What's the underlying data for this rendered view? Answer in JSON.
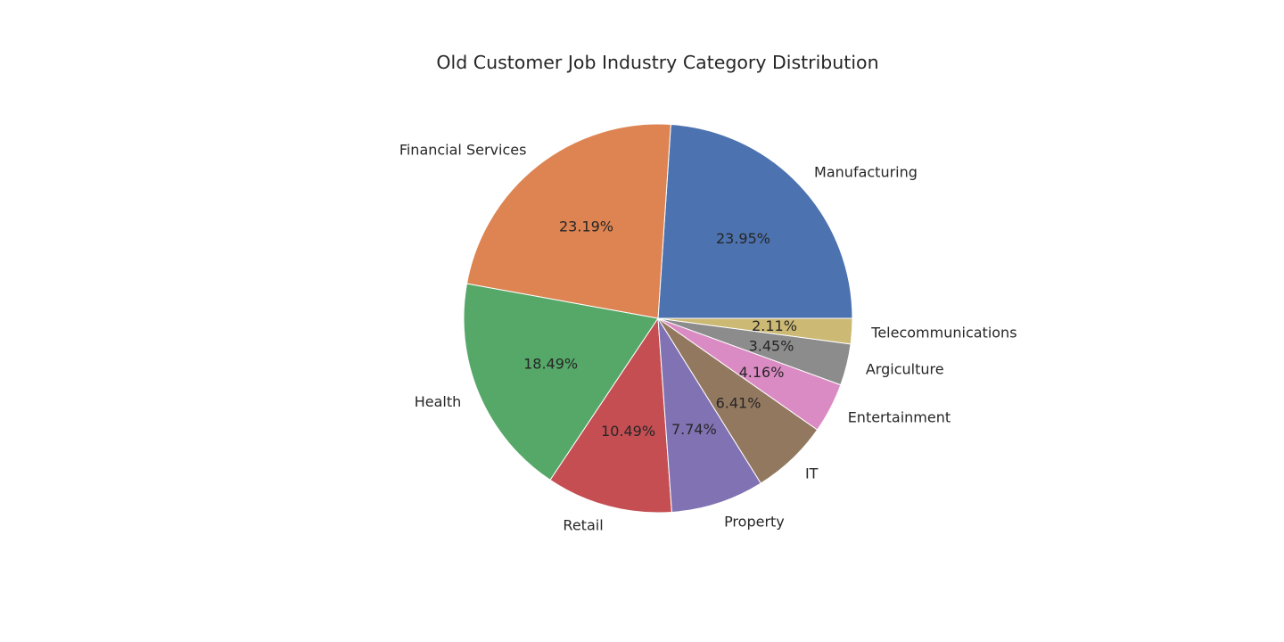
{
  "chart_data": {
    "type": "pie",
    "title": "Old Customer Job Industry Category Distribution",
    "start_angle_deg": 0,
    "direction": "counterclockwise",
    "slices": [
      {
        "label": "Manufacturing",
        "value": 23.95,
        "pct_text": "23.95%",
        "color": "#4C72B0"
      },
      {
        "label": "Financial Services",
        "value": 23.19,
        "pct_text": "23.19%",
        "color": "#DD8452"
      },
      {
        "label": "Health",
        "value": 18.49,
        "pct_text": "18.49%",
        "color": "#55A868"
      },
      {
        "label": "Retail",
        "value": 10.49,
        "pct_text": "10.49%",
        "color": "#C44E52"
      },
      {
        "label": "Property",
        "value": 7.74,
        "pct_text": "7.74%",
        "color": "#8172B3"
      },
      {
        "label": "IT",
        "value": 6.41,
        "pct_text": "6.41%",
        "color": "#937860"
      },
      {
        "label": "Entertainment",
        "value": 4.16,
        "pct_text": "4.16%",
        "color": "#DA8BC3"
      },
      {
        "label": "Argiculture",
        "value": 3.45,
        "pct_text": "3.45%",
        "color": "#8C8C8C"
      },
      {
        "label": "Telecommunications",
        "value": 2.11,
        "pct_text": "2.11%",
        "color": "#CCB974"
      }
    ]
  }
}
